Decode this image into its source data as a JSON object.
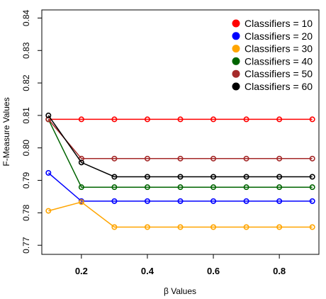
{
  "chart_data": {
    "type": "line",
    "title": "",
    "xlabel": "β Values",
    "ylabel": "F-Measure Values",
    "x": [
      0.1,
      0.2,
      0.3,
      0.4,
      0.5,
      0.6,
      0.7,
      0.8,
      0.9
    ],
    "xlim": [
      0.08,
      0.92
    ],
    "ylim": [
      0.7672,
      0.8425
    ],
    "x_ticks": [
      0.2,
      0.4,
      0.6,
      0.8
    ],
    "x_tick_labels": [
      "0.2",
      "0.4",
      "0.6",
      "0.8"
    ],
    "y_ticks": [
      0.77,
      0.78,
      0.79,
      0.8,
      0.81,
      0.82,
      0.83,
      0.84
    ],
    "y_tick_labels": [
      "0.77",
      "0.78",
      "0.79",
      "0.80",
      "0.81",
      "0.82",
      "0.83",
      "0.84"
    ],
    "grid": false,
    "legend_position": "top-right",
    "series": [
      {
        "name": "Classifiers = 10",
        "color": "#ff0000",
        "values": [
          0.8088,
          0.8088,
          0.8088,
          0.8088,
          0.8088,
          0.8088,
          0.8088,
          0.8088,
          0.8088
        ]
      },
      {
        "name": "Classifiers = 20",
        "color": "#0000ff",
        "values": [
          0.7923,
          0.7836,
          0.7836,
          0.7836,
          0.7836,
          0.7836,
          0.7836,
          0.7836,
          0.7836
        ]
      },
      {
        "name": "Classifiers = 30",
        "color": "#ffa500",
        "values": [
          0.7806,
          0.7833,
          0.7756,
          0.7756,
          0.7756,
          0.7756,
          0.7756,
          0.7756,
          0.7756
        ]
      },
      {
        "name": "Classifiers = 40",
        "color": "#006400",
        "values": [
          0.8088,
          0.7879,
          0.7879,
          0.7879,
          0.7879,
          0.7879,
          0.7879,
          0.7879,
          0.7879
        ]
      },
      {
        "name": "Classifiers = 50",
        "color": "#a52a2a",
        "values": [
          0.8088,
          0.7967,
          0.7967,
          0.7967,
          0.7967,
          0.7967,
          0.7967,
          0.7967,
          0.7967
        ]
      },
      {
        "name": "Classifiers = 60",
        "color": "#000000",
        "values": [
          0.81,
          0.7955,
          0.7911,
          0.7911,
          0.7911,
          0.7911,
          0.7911,
          0.7911,
          0.7911
        ]
      }
    ]
  }
}
